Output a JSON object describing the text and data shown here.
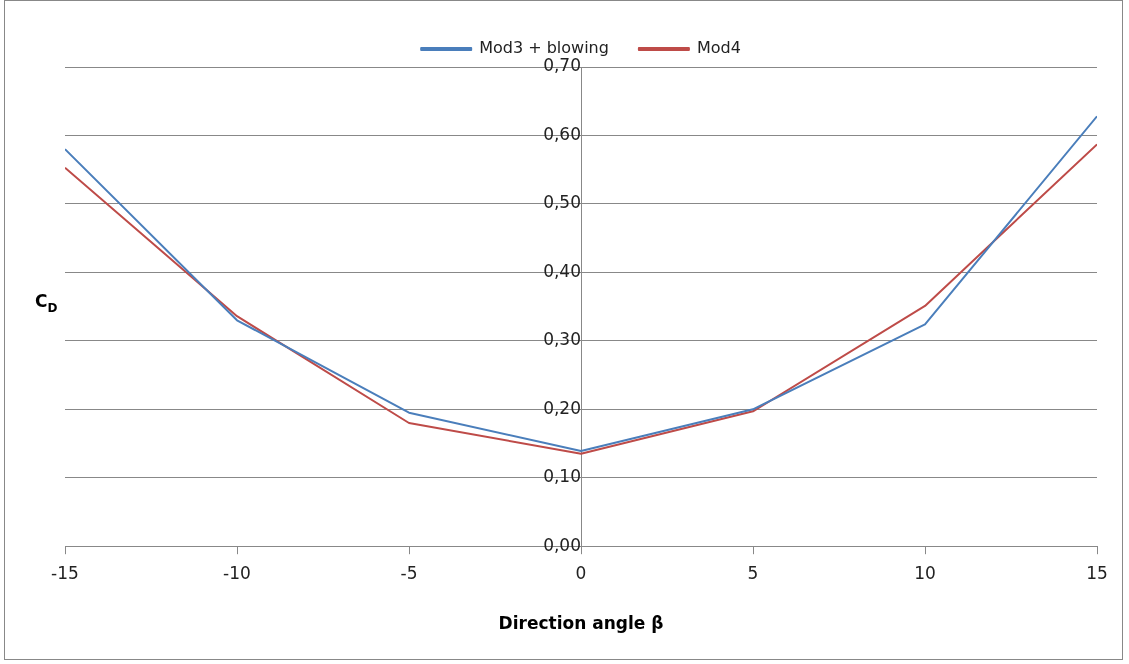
{
  "chart_data": {
    "type": "line",
    "xlabel": "Direction angle β",
    "ylabel": "C$_{D}$",
    "x": [
      -15,
      -10,
      -5,
      0,
      5,
      10,
      15
    ],
    "series": [
      {
        "name": "Mod3 + blowing",
        "color": "#4a7ebb",
        "values": [
          0.58,
          0.33,
          0.195,
          0.139,
          0.2,
          0.324,
          0.628
        ]
      },
      {
        "name": "Mod4",
        "color": "#be4b48",
        "values": [
          0.553,
          0.336,
          0.18,
          0.135,
          0.197,
          0.351,
          0.587
        ]
      }
    ],
    "xlim": [
      -15,
      15
    ],
    "xticks": [
      -15,
      -10,
      -5,
      0,
      5,
      10,
      15
    ],
    "ylim": [
      0,
      0.7
    ],
    "yticks": [
      {
        "value": 0,
        "label": "0,00"
      },
      {
        "value": 0.1,
        "label": "0,10"
      },
      {
        "value": 0.2,
        "label": "0,20"
      },
      {
        "value": 0.3,
        "label": "0,30"
      },
      {
        "value": 0.4,
        "label": "0,40"
      },
      {
        "value": 0.5,
        "label": "0,50"
      },
      {
        "value": 0.6,
        "label": "0,60"
      },
      {
        "value": 0.7,
        "label": "0,70"
      }
    ],
    "grid": "y",
    "legend": "top",
    "marker": "none",
    "line_style": "solid"
  }
}
